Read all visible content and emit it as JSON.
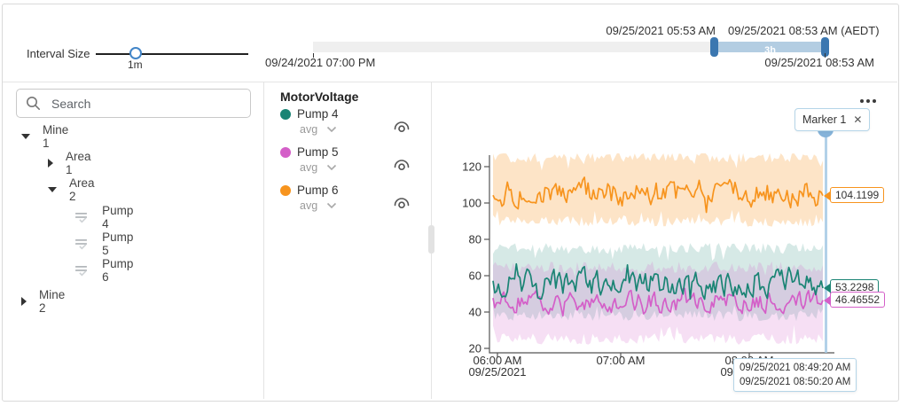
{
  "toolbar": {
    "interval_label": "Interval Size",
    "interval_value": "1m",
    "timeline": {
      "range_start_label": "09/24/2021 07:00 PM",
      "selection_start_label": "09/25/2021 05:53 AM",
      "selection_end_label": "09/25/2021 08:53 AM (AEDT)",
      "range_end_label": "09/25/2021 08:53 AM",
      "duration_label": "3h",
      "selection_color": "#b3cde2",
      "handle_color": "#3b77b0"
    }
  },
  "sidebar": {
    "search_placeholder": "Search",
    "tree": [
      {
        "label": "Mine 1",
        "level": 0,
        "state": "expanded"
      },
      {
        "label": "Area 1",
        "level": 1,
        "state": "collapsed"
      },
      {
        "label": "Area 2",
        "level": 1,
        "state": "expanded"
      },
      {
        "label": "Pump 4",
        "level": 2,
        "state": "leaf"
      },
      {
        "label": "Pump 5",
        "level": 2,
        "state": "leaf"
      },
      {
        "label": "Pump 6",
        "level": 2,
        "state": "leaf"
      },
      {
        "label": "Mine 2",
        "level": 0,
        "state": "collapsed"
      }
    ]
  },
  "legend": {
    "title": "MotorVoltage",
    "items": [
      {
        "name": "Pump 4",
        "agg": "avg",
        "color": "#1a8474"
      },
      {
        "name": "Pump 5",
        "agg": "avg",
        "color": "#d45fc8"
      },
      {
        "name": "Pump 6",
        "agg": "avg",
        "color": "#f7941e"
      }
    ]
  },
  "chart": {
    "marker": {
      "label": "Marker 1",
      "line_color": "#a5c9e4",
      "tooltip_lines": [
        "09/25/2021 08:49:20 AM",
        "09/25/2021 08:50:20 AM"
      ]
    },
    "value_labels": [
      {
        "text": "104.1199",
        "value": 104.1199,
        "series": "Pump 6",
        "color": "#f7941e"
      },
      {
        "text": "53.2298",
        "value": 53.2298,
        "series": "Pump 4",
        "color": "#1a8474"
      },
      {
        "text": "46.46552",
        "value": 46.46552,
        "series": "Pump 5",
        "color": "#d45fc8"
      }
    ]
  },
  "chart_data": {
    "type": "line",
    "title": "MotorVoltage",
    "grid": false,
    "legend_position": "separate-left-panel",
    "x_axis": {
      "range": [
        "09/25/2021 05:53 AM",
        "09/25/2021 08:53 AM"
      ],
      "ticks": [
        {
          "time": "06:00 AM",
          "date": "09/25/2021"
        },
        {
          "time": "07:00 AM",
          "date": ""
        },
        {
          "time": "08:00 AM",
          "date": "09/25/2021"
        }
      ]
    },
    "y_axis": {
      "ticks": [
        120,
        100,
        80,
        60,
        40,
        20
      ],
      "range": [
        18,
        130
      ]
    },
    "series": [
      {
        "name": "Pump 4",
        "color": "#1a8474",
        "avg": 55.5,
        "line_min": 47,
        "line_max": 68,
        "band_min": 35,
        "band_max": 78,
        "marker_value": 53.2298
      },
      {
        "name": "Pump 5",
        "color": "#d45fc8",
        "avg": 45.5,
        "line_min": 36.5,
        "line_max": 53,
        "band_min": 22,
        "band_max": 68,
        "marker_value": 46.46552
      },
      {
        "name": "Pump 6",
        "color": "#f7941e",
        "avg": 105.5,
        "line_min": 94,
        "line_max": 115,
        "band_min": 87,
        "band_max": 128,
        "marker_value": 104.1199
      }
    ]
  }
}
